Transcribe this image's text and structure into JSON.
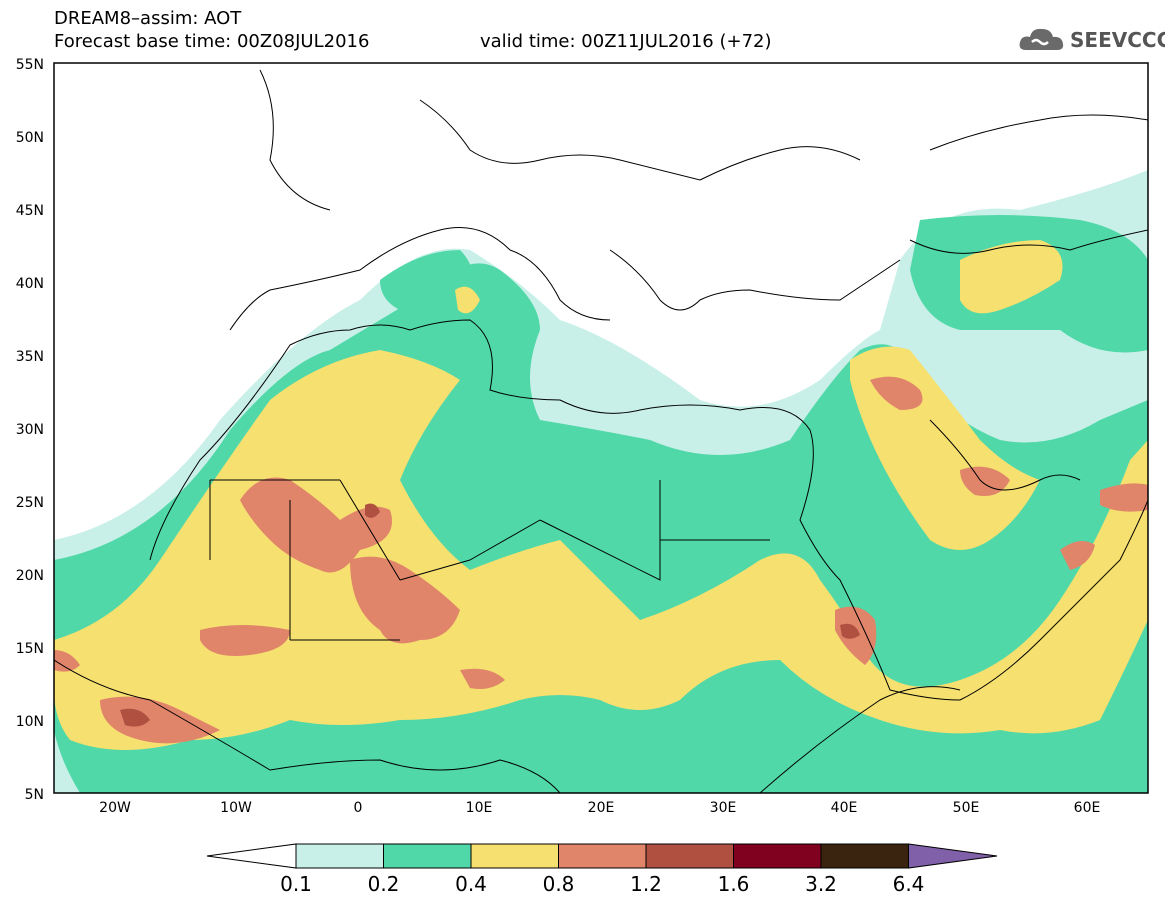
{
  "header": {
    "title": "DREAM8–assim: AOT",
    "base_time": "Forecast base time: 00Z08JUL2016",
    "valid_time": "valid time: 00Z11JUL2016 (+72)"
  },
  "logo": {
    "text": "SEEVCCC",
    "icon": "cloud-icon"
  },
  "axes": {
    "lat_labels": [
      "55N",
      "50N",
      "45N",
      "40N",
      "35N",
      "30N",
      "25N",
      "20N",
      "15N",
      "10N",
      "5N"
    ],
    "lon_labels": [
      "20W",
      "10W",
      "0",
      "10E",
      "20E",
      "30E",
      "40E",
      "50E",
      "60E"
    ]
  },
  "colorbar": {
    "levels": [
      "0.1",
      "0.2",
      "0.4",
      "0.8",
      "1.2",
      "1.6",
      "3.2",
      "6.4"
    ],
    "colors": [
      "#ffffff",
      "#c8f0e8",
      "#50d8a8",
      "#f5e070",
      "#e0846a",
      "#b05040",
      "#800020",
      "#3a2410",
      "#8060a8"
    ]
  }
}
